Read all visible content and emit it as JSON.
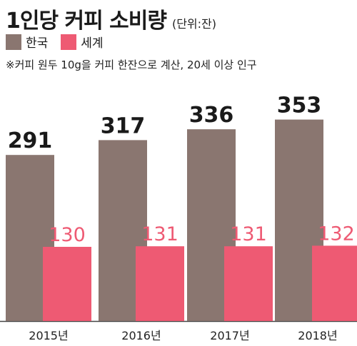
{
  "chart_data": {
    "type": "bar",
    "title": "1인당 커피 소비량",
    "unit": "(단위:잔)",
    "note": "※커피 원두 10g을 커피 한잔으로 계산, 20세 이상 인구",
    "categories": [
      "2015년",
      "2016년",
      "2017년",
      "2018년"
    ],
    "series": [
      {
        "name": "한국",
        "values": [
          291,
          317,
          336,
          353
        ],
        "color": "#8a7670"
      },
      {
        "name": "세계",
        "values": [
          130,
          131,
          131,
          132
        ],
        "color": "#ee5a73"
      }
    ],
    "legend_position": "top-left",
    "grid": false
  }
}
